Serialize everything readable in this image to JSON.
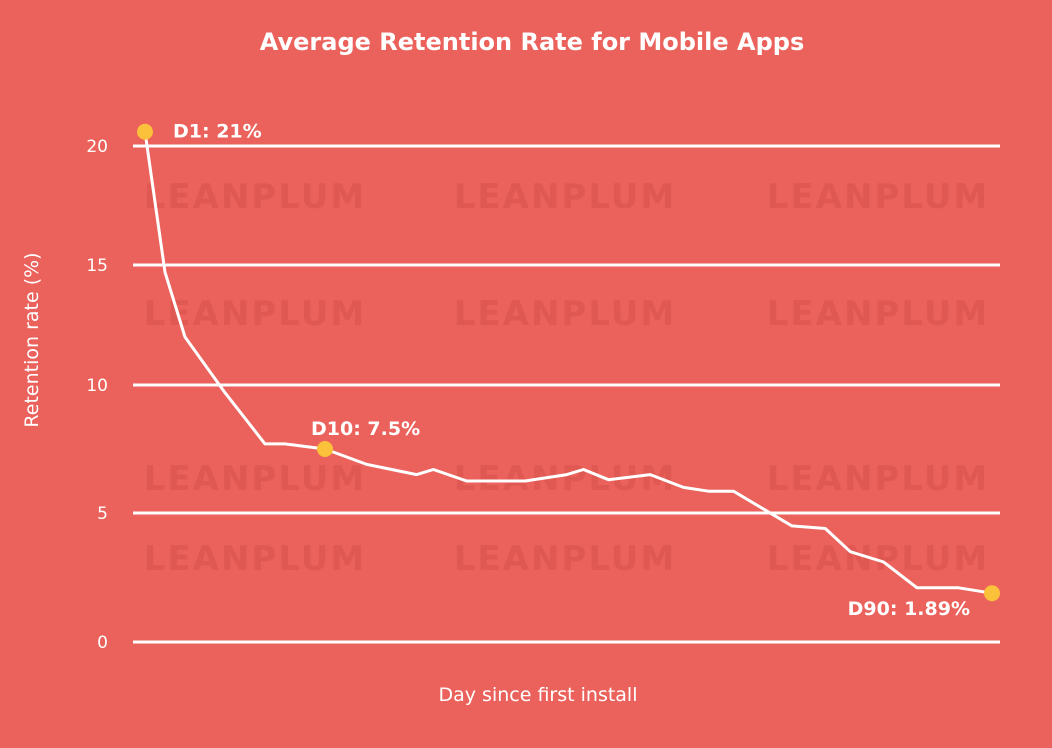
{
  "chart_data": {
    "type": "line",
    "title": "Average Retention Rate for Mobile Apps",
    "xlabel": "Day since first install",
    "ylabel": "Retention rate (%)",
    "ylim": [
      0,
      20
    ],
    "yticks": [
      0,
      5,
      10,
      15,
      20
    ],
    "ytick_labels": [
      "0",
      "5",
      "10",
      "15",
      "20"
    ],
    "xlim": [
      1,
      90
    ],
    "grid": "horizontal",
    "x": [
      1,
      2,
      3,
      5,
      7,
      8,
      10,
      15,
      21,
      23,
      27,
      34,
      39,
      41,
      44,
      49,
      53,
      56,
      59,
      66,
      70,
      73,
      77,
      81,
      86,
      90
    ],
    "values": [
      20.6,
      14.7,
      12.0,
      9.7,
      7.7,
      7.7,
      7.5,
      6.9,
      6.5,
      6.7,
      6.25,
      6.25,
      6.5,
      6.7,
      6.3,
      6.5,
      6.0,
      5.85,
      5.85,
      4.5,
      4.4,
      3.5,
      3.1,
      2.1,
      2.1,
      1.89
    ],
    "annotations": [
      {
        "x": 1,
        "y": 20.6,
        "label": "D1: 21%"
      },
      {
        "x": 10,
        "y": 7.5,
        "label": "D10: 7.5%"
      },
      {
        "x": 90,
        "y": 1.89,
        "label": "D90: 1.89%"
      }
    ],
    "watermark": "LEANPLUM",
    "colors": {
      "background": "#EB625C",
      "line": "#FFFFFF",
      "marker": "#FBC13A",
      "grid": "#FFFFFF",
      "watermark": "#E05852"
    }
  }
}
